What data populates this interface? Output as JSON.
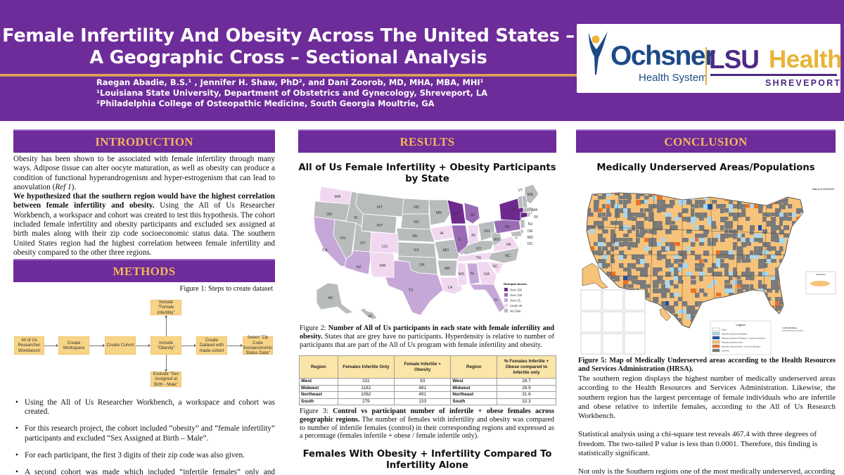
{
  "header": {
    "title_line1": "Female Infertility And Obesity Across The United States –",
    "title_line2": "A Geographic Cross – Sectional Analysis",
    "authors": "Raegan Abadie, B.S.¹ , Jennifer H. Shaw, PhD², and Dani Zoorob, MD, MHA, MBA, MHI¹",
    "affiliation1": "¹Louisiana State University, Department of Obstetrics and Gynecology, Shreveport, LA",
    "affiliation2": "²Philadelphia College of Osteopathic Medicine, South Georgia Moultrie, GA",
    "logo": {
      "ochsner_name": "Ochsner",
      "ochsner_sub": "Health System",
      "lsu": "LSU",
      "health": "Health",
      "shreveport": "SHREVEPORT"
    }
  },
  "colors": {
    "primary_purple": "#6e2c9a",
    "heading_gold": "#f3b55b",
    "flow_box": "#f8d486",
    "table_header": "#fbe5a8"
  },
  "introduction": {
    "heading": "INTRODUCTION",
    "p1_a": "Obesity has been shown to be associated with female infertility through many ways. Adipose tissue can alter oocyte maturation, as well as obesity can produce a condition of functional hyperandrogenism and hyper-estrogenism that can lead to anovulation (",
    "p1_ref": "Ref 1",
    "p1_b": ").",
    "p2_bold": "We hypothesized that the southern region would have the highest correlation between female infertility and obesity.",
    "p2_rest": " Using the All of Us Researcher Workbench, a workspace and cohort was created to test this hypothesis. The cohort included female infertility and obesity participants and excluded sex assigned at birth males along with their zip code socioeconomic status data. The southern United States region had the highest correlation between female infertility and obesity compared to the other three regions."
  },
  "methods": {
    "heading": "METHODS",
    "fig1_caption": "Figure 1: Steps to create dataset",
    "flow": {
      "step1": "All of Us Researcher Workbench",
      "step2": "Create Workspace",
      "step3": "Create Cohort",
      "step4": "Include \"Obesity\"",
      "step4_up": "Include \"Female Infertility\"",
      "step4_down": "Exclude \"Sex Assigned at Birth - Male\"",
      "step5": "Create Dataset with made cohort",
      "step6": "Select \"Zip Code Socioeconomic Status Data\""
    },
    "bullets": [
      "Using the All of Us Researcher Workbench, a workspace and cohort was created.",
      "For this research project, the cohort included “obesity” and “female infertility” participants and excluded “Sex Assigned at Birth – Male”.",
      "For each participant, the first 3 digits of their zip code was also given.",
      "A second cohort was made which included  “infertile females” only and excluded “Sex Assigned at Birth – Male” to serve as the control."
    ]
  },
  "results": {
    "heading": "RESULTS",
    "map_title": "All of Us Female Infertility + Obesity Participants by State",
    "map": {
      "legend_title": "Participant Number",
      "categories": [
        {
          "key": "over200",
          "label": "Over 200",
          "color": "#6d2a8c"
        },
        {
          "key": "over100",
          "label": "Over 100",
          "color": "#9a6bb5"
        },
        {
          "key": "over25",
          "label": "Over 25",
          "color": "#c6a8d8"
        },
        {
          "key": "under25",
          "label": "Under 25",
          "color": "#f1d8f0"
        },
        {
          "key": "nodata",
          "label": "No Data",
          "color": "#b9bcbc"
        }
      ],
      "states": [
        {
          "abbr": "WA",
          "cat": "under25"
        },
        {
          "abbr": "OR",
          "cat": "nodata"
        },
        {
          "abbr": "CA",
          "cat": "over25"
        },
        {
          "abbr": "ID",
          "cat": "nodata"
        },
        {
          "abbr": "NV",
          "cat": "nodata"
        },
        {
          "abbr": "AZ",
          "cat": "over25"
        },
        {
          "abbr": "MT",
          "cat": "nodata"
        },
        {
          "abbr": "WY",
          "cat": "nodata"
        },
        {
          "abbr": "UT",
          "cat": "nodata"
        },
        {
          "abbr": "CO",
          "cat": "under25"
        },
        {
          "abbr": "NM",
          "cat": "under25"
        },
        {
          "abbr": "ND",
          "cat": "nodata"
        },
        {
          "abbr": "SD",
          "cat": "nodata"
        },
        {
          "abbr": "NE",
          "cat": "nodata"
        },
        {
          "abbr": "KS",
          "cat": "nodata"
        },
        {
          "abbr": "OK",
          "cat": "nodata"
        },
        {
          "abbr": "TX",
          "cat": "over25"
        },
        {
          "abbr": "MN",
          "cat": "nodata"
        },
        {
          "abbr": "IA",
          "cat": "under25"
        },
        {
          "abbr": "MO",
          "cat": "nodata"
        },
        {
          "abbr": "AR",
          "cat": "nodata"
        },
        {
          "abbr": "LA",
          "cat": "under25"
        },
        {
          "abbr": "WI",
          "cat": "over200"
        },
        {
          "abbr": "IL",
          "cat": "over100"
        },
        {
          "abbr": "MI",
          "cat": "over100"
        },
        {
          "abbr": "IN",
          "cat": "under25"
        },
        {
          "abbr": "OH",
          "cat": "nodata"
        },
        {
          "abbr": "KY",
          "cat": "nodata"
        },
        {
          "abbr": "TN",
          "cat": "under25"
        },
        {
          "abbr": "MS",
          "cat": "under25"
        },
        {
          "abbr": "AL",
          "cat": "over25"
        },
        {
          "abbr": "GA",
          "cat": "under25"
        },
        {
          "abbr": "FL",
          "cat": "over25"
        },
        {
          "abbr": "SC",
          "cat": "under25"
        },
        {
          "abbr": "NC",
          "cat": "nodata"
        },
        {
          "abbr": "VA",
          "cat": "under25"
        },
        {
          "abbr": "WV",
          "cat": "nodata"
        },
        {
          "abbr": "PA",
          "cat": "over100"
        },
        {
          "abbr": "NY",
          "cat": "over200"
        },
        {
          "abbr": "VT",
          "cat": "nodata"
        },
        {
          "abbr": "ME",
          "cat": "nodata"
        },
        {
          "abbr": "NH",
          "cat": "nodata"
        },
        {
          "abbr": "MA",
          "cat": "nodata"
        },
        {
          "abbr": "RI",
          "cat": "nodata"
        },
        {
          "abbr": "CT",
          "cat": "over200"
        },
        {
          "abbr": "NJ",
          "cat": "nodata"
        },
        {
          "abbr": "DE",
          "cat": "nodata"
        },
        {
          "abbr": "MD",
          "cat": "nodata"
        },
        {
          "abbr": "DC",
          "cat": "nodata"
        },
        {
          "abbr": "AK",
          "cat": "nodata"
        },
        {
          "abbr": "HI",
          "cat": "nodata"
        }
      ]
    },
    "fig2_label": "Figure 2: ",
    "fig2_bold": "Number of All of Us participants in each state with female infertility and obesity.",
    "fig2_rest": " States that are grey have no participants. Hyperdensity is relative to number of participants that are part of the All of Us program with female infertility and obesity.",
    "table": {
      "headers": [
        "Region",
        "Females Infertile Only",
        "Female Infertile + Obesity",
        "Region",
        "% Females Infertile + Obese compared to Infertile only"
      ],
      "rows": [
        [
          "West",
          "231",
          "93",
          "West",
          "28.7"
        ],
        [
          "Midwest",
          "1182",
          "481",
          "Midwest",
          "28.9"
        ],
        [
          "Northeast",
          "1062",
          "491",
          "Northeast",
          "31.6"
        ],
        [
          "South",
          "279",
          "133",
          "South",
          "32.3"
        ]
      ]
    },
    "fig3_label": "Figure 3: ",
    "fig3_bold": "Control vs participant number of infertile + obese females across geographic regions.",
    "fig3_rest": " The number of females with infertility and obesity was compared to number of infertile females (control) in their corresponding regions and expressed as a percentage (females infertile + obese / female infertile only).",
    "chart2_title": "Females With Obesity + Infertility Compared To Infertility Alone"
  },
  "conclusion": {
    "heading": "CONCLUSION",
    "map_title": "Medically Underserved Areas/Populations",
    "map": {
      "date_note": "Data as of 01/23/2022",
      "legend_title": "Legend",
      "legend_items": [
        {
          "label": "States",
          "color": "#ffffff"
        },
        {
          "label": "Medically Underserved Population",
          "color": "#a8d8f0"
        },
        {
          "label": "Medically Underserved Population – Governor's Exception",
          "color": "#1f4fa0"
        },
        {
          "label": "Medically Underserved Area",
          "color": "#f7c37a"
        },
        {
          "label": "Medically Underserved Area – Governor's Exception",
          "color": "#e8722a"
        },
        {
          "label": "Not HPSA",
          "color": "#7a7a7a"
        }
      ],
      "scale": "0   150   300 Miles",
      "inset_puerto_rico": "Puerto Rico"
    },
    "fig5_caption": "Figure 5: Map of Medically Underserved areas according to the Health Resources and Services Administration (HRSA).",
    "paragraphs": [
      "The southern region displays the highest number of medically underserved areas according to the Health Resources and Services Administration. Likewise, the southern region has the largest percentage of female individuals who are infertile and obese relative to infertile females, according to the All of Us Research Workbench.",
      "Statistical analysis using a chi-square test reveals 467.4 with three degrees of freedom. The two-tailed P value is less than 0.0001. Therefore, this finding is statistically significant.",
      "Not only is the Southern regions one of the most medically underserved, according"
    ]
  }
}
